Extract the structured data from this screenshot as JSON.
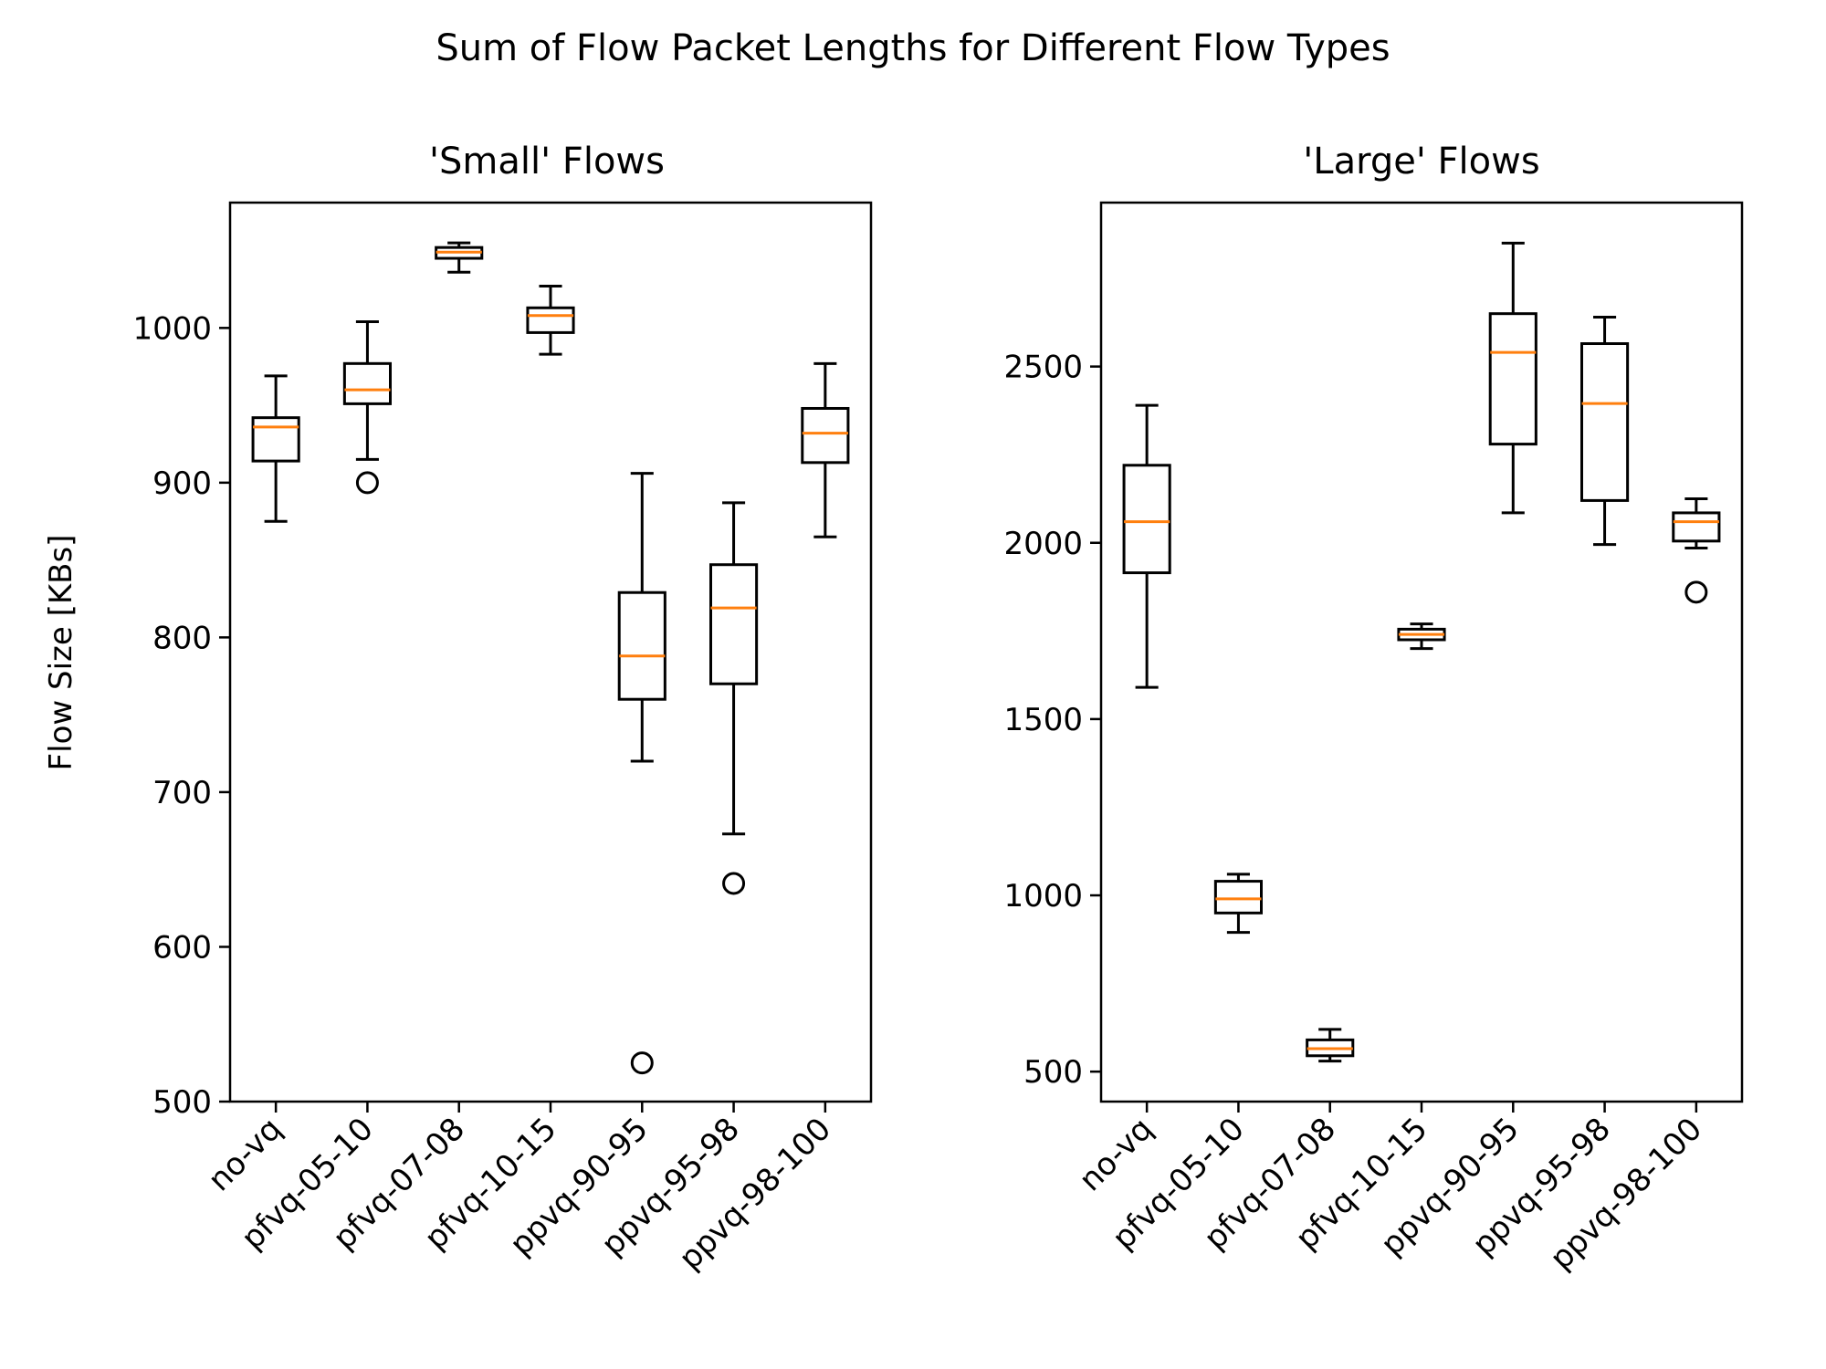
{
  "figure": {
    "suptitle": "Sum of Flow Packet Lengths for Different Flow Types"
  },
  "colors": {
    "median": "#ff7f0e",
    "box": "#000000"
  },
  "chart_data": [
    {
      "type": "box",
      "title": "'Small' Flows",
      "xlabel": "",
      "ylabel": "Flow Size [KBs]",
      "ylim": [
        500,
        1081
      ],
      "yticks": [
        500,
        600,
        700,
        800,
        900,
        1000
      ],
      "categories": [
        "no-vq",
        "pfvq-05-10",
        "pfvq-07-08",
        "pfvq-10-15",
        "ppvq-90-95",
        "ppvq-95-98",
        "ppvq-98-100"
      ],
      "boxes": [
        {
          "whislo": 875,
          "q1": 914,
          "med": 936,
          "q3": 942,
          "whishi": 969,
          "fliers": []
        },
        {
          "whislo": 915,
          "q1": 951,
          "med": 960,
          "q3": 977,
          "whishi": 1004,
          "fliers": [
            900
          ]
        },
        {
          "whislo": 1036,
          "q1": 1045,
          "med": 1049,
          "q3": 1052,
          "whishi": 1055,
          "fliers": []
        },
        {
          "whislo": 983,
          "q1": 997,
          "med": 1008,
          "q3": 1013,
          "whishi": 1027,
          "fliers": []
        },
        {
          "whislo": 720,
          "q1": 760,
          "med": 788,
          "q3": 829,
          "whishi": 906,
          "fliers": [
            525
          ]
        },
        {
          "whislo": 673,
          "q1": 770,
          "med": 819,
          "q3": 847,
          "whishi": 887,
          "fliers": [
            641
          ]
        },
        {
          "whislo": 865,
          "q1": 913,
          "med": 932,
          "q3": 948,
          "whishi": 977,
          "fliers": []
        }
      ]
    },
    {
      "type": "box",
      "title": "'Large' Flows",
      "xlabel": "",
      "ylabel": "",
      "ylim": [
        415,
        2965
      ],
      "yticks": [
        500,
        1000,
        1500,
        2000,
        2500
      ],
      "categories": [
        "no-vq",
        "pfvq-05-10",
        "pfvq-07-08",
        "pfvq-10-15",
        "ppvq-90-95",
        "ppvq-95-98",
        "ppvq-98-100"
      ],
      "boxes": [
        {
          "whislo": 1590,
          "q1": 1915,
          "med": 2060,
          "q3": 2220,
          "whishi": 2390,
          "fliers": []
        },
        {
          "whislo": 895,
          "q1": 950,
          "med": 990,
          "q3": 1040,
          "whishi": 1060,
          "fliers": []
        },
        {
          "whislo": 530,
          "q1": 545,
          "med": 565,
          "q3": 590,
          "whishi": 620,
          "fliers": []
        },
        {
          "whislo": 1700,
          "q1": 1725,
          "med": 1740,
          "q3": 1755,
          "whishi": 1770,
          "fliers": []
        },
        {
          "whislo": 2085,
          "q1": 2280,
          "med": 2540,
          "q3": 2650,
          "whishi": 2850,
          "fliers": []
        },
        {
          "whislo": 1995,
          "q1": 2120,
          "med": 2395,
          "q3": 2565,
          "whishi": 2640,
          "fliers": []
        },
        {
          "whislo": 1985,
          "q1": 2005,
          "med": 2060,
          "q3": 2085,
          "whishi": 2125,
          "fliers": [
            1860
          ]
        }
      ]
    }
  ]
}
